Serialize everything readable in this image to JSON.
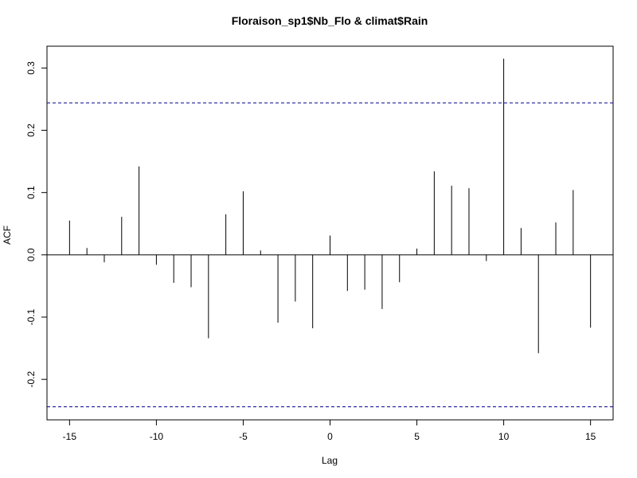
{
  "chart_data": {
    "type": "bar",
    "title": "Floraison_sp1$Nb_Flo & climat$Rain",
    "xlabel": "Lag",
    "ylabel": "ACF",
    "xlim": [
      -16.3,
      16.3
    ],
    "ylim": [
      -0.265,
      0.335
    ],
    "x_ticks": [
      -15,
      -10,
      -5,
      0,
      5,
      10,
      15
    ],
    "x_tick_labels": [
      "-15",
      "-10",
      "-5",
      "0",
      "5",
      "10",
      "15"
    ],
    "y_ticks": [
      -0.2,
      -0.1,
      0.0,
      0.1,
      0.2,
      0.3
    ],
    "y_tick_labels": [
      "-0.2",
      "-0.1",
      "0.0",
      "0.1",
      "0.2",
      "0.3"
    ],
    "ci_bounds": [
      0.244,
      -0.244
    ],
    "ci_color": "#00008B",
    "grid": false,
    "lags": [
      -15,
      -14,
      -13,
      -12,
      -11,
      -10,
      -9,
      -8,
      -7,
      -6,
      -5,
      -4,
      -3,
      -2,
      -1,
      0,
      1,
      2,
      3,
      4,
      5,
      6,
      7,
      8,
      9,
      10,
      11,
      12,
      13,
      14,
      15
    ],
    "values": [
      0.055,
      0.011,
      -0.012,
      0.061,
      0.142,
      -0.016,
      -0.045,
      -0.052,
      -0.134,
      0.065,
      0.102,
      0.007,
      -0.109,
      -0.075,
      -0.118,
      0.031,
      -0.058,
      -0.056,
      -0.087,
      -0.044,
      0.01,
      0.134,
      0.111,
      0.107,
      -0.01,
      0.315,
      0.043,
      -0.158,
      0.052,
      0.104,
      -0.117
    ]
  }
}
